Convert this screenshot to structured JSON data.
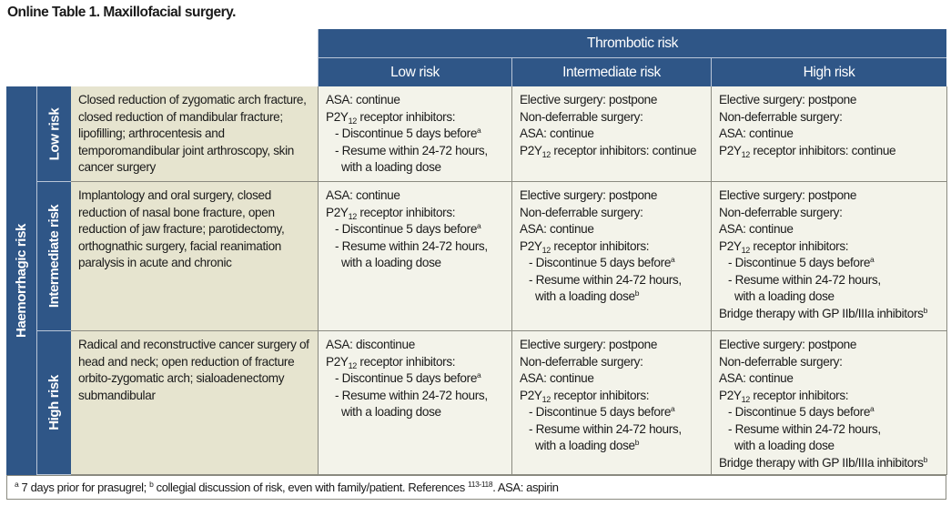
{
  "title": "Online Table 1. Maxillofacial surgery.",
  "header": {
    "group": "Thrombotic risk",
    "columns": [
      "Low risk",
      "Intermediate risk",
      "High risk"
    ]
  },
  "row_group": "Haemorrhagic risk",
  "colors": {
    "header_blue": "#2f5687",
    "procedure_beige": "#e6e4cf",
    "cell_bg": "#f3f3ea"
  },
  "rows": [
    {
      "label": "Low risk",
      "procedures": [
        [
          {
            "t": "Closed reduction of zygomatic arch fracture,"
          }
        ],
        [
          {
            "t": "closed reduction of mandibular fracture;"
          }
        ],
        [
          {
            "t": "lipofilling; arthrocentesis and"
          }
        ],
        [
          {
            "t": "temporomandibular joint arthroscopy, skin"
          }
        ],
        [
          {
            "t": "cancer surgery"
          }
        ]
      ],
      "cells": [
        [
          [
            {
              "t": "ASA: continue"
            }
          ],
          [
            {
              "t": "P2Y"
            },
            {
              "sub": "12"
            },
            {
              "t": " receptor inhibitors:"
            }
          ],
          [
            {
              "i": 1
            },
            {
              "t": "- Discontinue 5 days before"
            },
            {
              "sup": "a"
            }
          ],
          [
            {
              "i": 1
            },
            {
              "t": "- Resume within 24-72 hours,"
            }
          ],
          [
            {
              "i": 2
            },
            {
              "t": "with a loading dose"
            }
          ]
        ],
        [
          [
            {
              "t": "Elective surgery: postpone"
            }
          ],
          [
            {
              "t": "Non-deferrable surgery:"
            }
          ],
          [
            {
              "t": "ASA: continue"
            }
          ],
          [
            {
              "t": "P2Y"
            },
            {
              "sub": "12"
            },
            {
              "t": " receptor inhibitors: continue"
            }
          ]
        ],
        [
          [
            {
              "t": "Elective surgery: postpone"
            }
          ],
          [
            {
              "t": "Non-deferrable surgery:"
            }
          ],
          [
            {
              "t": "ASA: continue"
            }
          ],
          [
            {
              "t": "P2Y"
            },
            {
              "sub": "12"
            },
            {
              "t": " receptor inhibitors: continue"
            }
          ]
        ]
      ]
    },
    {
      "label": "Intermediate risk",
      "procedures": [
        [
          {
            "t": "Implantology and oral surgery, closed"
          }
        ],
        [
          {
            "t": "reduction of nasal bone fracture, open"
          }
        ],
        [
          {
            "t": "reduction of jaw fracture; parotidectomy,"
          }
        ],
        [
          {
            "t": "orthognathic surgery, facial reanimation"
          }
        ],
        [
          {
            "t": "paralysis in acute and chronic"
          }
        ]
      ],
      "cells": [
        [
          [
            {
              "t": "ASA: continue"
            }
          ],
          [
            {
              "t": "P2Y"
            },
            {
              "sub": "12"
            },
            {
              "t": " receptor inhibitors:"
            }
          ],
          [
            {
              "i": 1
            },
            {
              "t": "- Discontinue 5 days before"
            },
            {
              "sup": "a"
            }
          ],
          [
            {
              "i": 1
            },
            {
              "t": "- Resume within 24-72 hours,"
            }
          ],
          [
            {
              "i": 2
            },
            {
              "t": "with a loading dose"
            }
          ]
        ],
        [
          [
            {
              "t": "Elective surgery: postpone"
            }
          ],
          [
            {
              "t": "Non-deferrable surgery:"
            }
          ],
          [
            {
              "t": "ASA: continue"
            }
          ],
          [
            {
              "t": "P2Y"
            },
            {
              "sub": "12"
            },
            {
              "t": " receptor inhibitors:"
            }
          ],
          [
            {
              "i": 1
            },
            {
              "t": "- Discontinue 5 days before"
            },
            {
              "sup": "a"
            }
          ],
          [
            {
              "i": 1
            },
            {
              "t": "- Resume within 24-72 hours,"
            }
          ],
          [
            {
              "i": 2
            },
            {
              "t": "with a loading dose"
            },
            {
              "sup": "b"
            }
          ]
        ],
        [
          [
            {
              "t": "Elective surgery: postpone"
            }
          ],
          [
            {
              "t": "Non-deferrable surgery:"
            }
          ],
          [
            {
              "t": "ASA: continue"
            }
          ],
          [
            {
              "t": "P2Y"
            },
            {
              "sub": "12"
            },
            {
              "t": " receptor inhibitors:"
            }
          ],
          [
            {
              "i": 1
            },
            {
              "t": "- Discontinue 5 days before"
            },
            {
              "sup": "a"
            }
          ],
          [
            {
              "i": 1
            },
            {
              "t": "- Resume within 24-72 hours,"
            }
          ],
          [
            {
              "i": 2
            },
            {
              "t": "with a loading dose"
            }
          ],
          [
            {
              "t": "Bridge therapy with GP IIb/IIIa inhibitors"
            },
            {
              "sup": "b"
            }
          ]
        ]
      ]
    },
    {
      "label": "High risk",
      "procedures": [
        [
          {
            "t": "Radical and reconstructive cancer surgery of"
          }
        ],
        [
          {
            "t": "head and neck; open reduction of fracture"
          }
        ],
        [
          {
            "t": "orbito-zygomatic arch; sialoadenectomy"
          }
        ],
        [
          {
            "t": "submandibular"
          }
        ]
      ],
      "cells": [
        [
          [
            {
              "t": "ASA: discontinue"
            }
          ],
          [
            {
              "t": "P2Y"
            },
            {
              "sub": "12"
            },
            {
              "t": " receptor inhibitors:"
            }
          ],
          [
            {
              "i": 1
            },
            {
              "t": "- Discontinue 5 days before"
            },
            {
              "sup": "a"
            }
          ],
          [
            {
              "i": 1
            },
            {
              "t": "- Resume within 24-72 hours,"
            }
          ],
          [
            {
              "i": 2
            },
            {
              "t": "with a loading dose"
            }
          ]
        ],
        [
          [
            {
              "t": "Elective surgery: postpone"
            }
          ],
          [
            {
              "t": "Non-deferrable surgery:"
            }
          ],
          [
            {
              "t": "ASA: continue"
            }
          ],
          [
            {
              "t": "P2Y"
            },
            {
              "sub": "12"
            },
            {
              "t": " receptor inhibitors:"
            }
          ],
          [
            {
              "i": 1
            },
            {
              "t": "- Discontinue 5 days before"
            },
            {
              "sup": "a"
            }
          ],
          [
            {
              "i": 1
            },
            {
              "t": "- Resume within 24-72 hours,"
            }
          ],
          [
            {
              "i": 2
            },
            {
              "t": "with a loading dose"
            },
            {
              "sup": "b"
            }
          ]
        ],
        [
          [
            {
              "t": "Elective surgery: postpone"
            }
          ],
          [
            {
              "t": "Non-deferrable surgery:"
            }
          ],
          [
            {
              "t": "ASA: continue"
            }
          ],
          [
            {
              "t": "P2Y"
            },
            {
              "sub": "12"
            },
            {
              "t": " receptor inhibitors:"
            }
          ],
          [
            {
              "i": 1
            },
            {
              "t": "- Discontinue 5 days before"
            },
            {
              "sup": "a"
            }
          ],
          [
            {
              "i": 1
            },
            {
              "t": "- Resume within 24-72 hours,"
            }
          ],
          [
            {
              "i": 2
            },
            {
              "t": "with a loading dose"
            }
          ],
          [
            {
              "t": "Bridge therapy with GP IIb/IIIa inhibitors"
            },
            {
              "sup": "b"
            }
          ]
        ]
      ]
    }
  ],
  "footnote": [
    {
      "sup": "a"
    },
    {
      "t": " 7 days prior for prasugrel; "
    },
    {
      "sup": "b"
    },
    {
      "t": " collegial discussion of risk, even with family/patient. References "
    },
    {
      "sup": "113-118"
    },
    {
      "t": ". ASA: aspirin"
    }
  ]
}
